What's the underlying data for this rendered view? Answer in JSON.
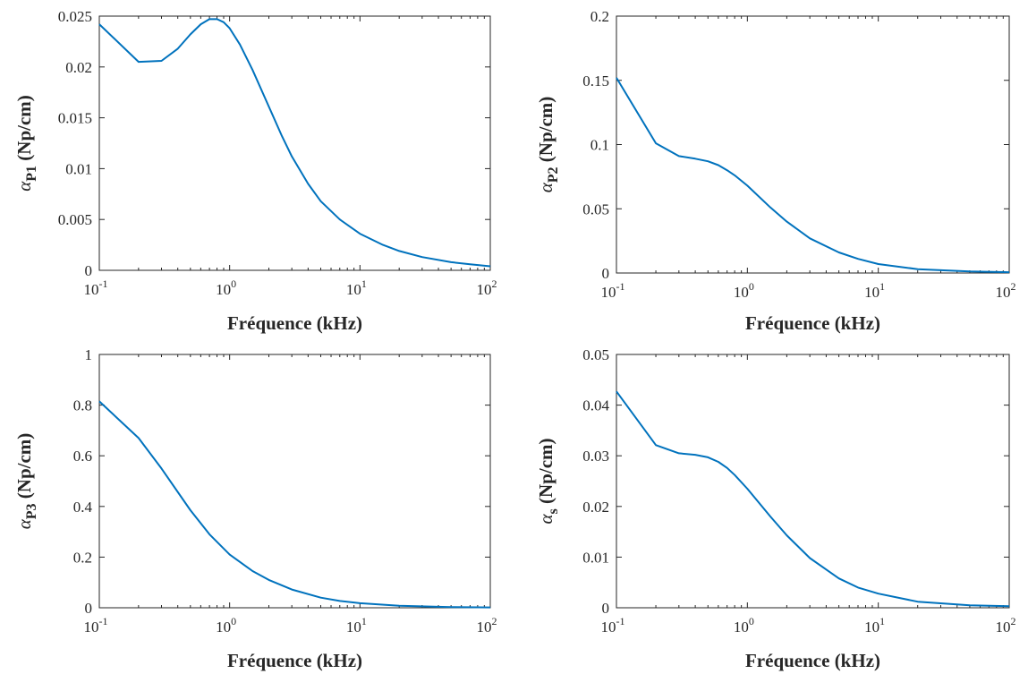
{
  "line_color": "#0072BD",
  "chart_data": [
    {
      "type": "line",
      "xlabel": "Fréquence (kHz)",
      "ylabel": {
        "symbol": "α",
        "subscript": "P1",
        "unit": "(Np/cm)"
      },
      "xscale": "log",
      "xlim": [
        0.1,
        100
      ],
      "ylim": [
        0,
        0.025
      ],
      "x_ticks": [
        {
          "base": "10",
          "exp": "-1"
        },
        {
          "base": "10",
          "exp": "0"
        },
        {
          "base": "10",
          "exp": "1"
        },
        {
          "base": "10",
          "exp": "2"
        }
      ],
      "y_ticks": [
        "0",
        "0.005",
        "0.01",
        "0.015",
        "0.02",
        "0.025"
      ],
      "y_tick_values": [
        0,
        0.005,
        0.01,
        0.015,
        0.02,
        0.025
      ],
      "x": [
        0.1,
        0.2,
        0.3,
        0.4,
        0.5,
        0.6,
        0.7,
        0.8,
        0.9,
        1.0,
        1.2,
        1.5,
        2.0,
        2.5,
        3.0,
        4.0,
        5.0,
        7.0,
        10,
        15,
        20,
        30,
        50,
        70,
        100
      ],
      "y": [
        0.0242,
        0.0205,
        0.0206,
        0.0218,
        0.0232,
        0.0242,
        0.0247,
        0.0247,
        0.0244,
        0.0238,
        0.0222,
        0.0197,
        0.0161,
        0.0133,
        0.0112,
        0.0085,
        0.0068,
        0.005,
        0.0036,
        0.0025,
        0.0019,
        0.0013,
        0.0008,
        0.0006,
        0.0004
      ]
    },
    {
      "type": "line",
      "xlabel": "Fréquence (kHz)",
      "ylabel": {
        "symbol": "α",
        "subscript": "P2",
        "unit": "(Np/cm)"
      },
      "xscale": "log",
      "xlim": [
        0.1,
        100
      ],
      "ylim": [
        0,
        0.2
      ],
      "x_ticks": [
        {
          "base": "10",
          "exp": "-1"
        },
        {
          "base": "10",
          "exp": "0"
        },
        {
          "base": "10",
          "exp": "1"
        },
        {
          "base": "10",
          "exp": "2"
        }
      ],
      "y_ticks": [
        "0",
        "0.05",
        "0.1",
        "0.15",
        "0.2"
      ],
      "y_tick_values": [
        0,
        0.05,
        0.1,
        0.15,
        0.2
      ],
      "x": [
        0.1,
        0.2,
        0.3,
        0.4,
        0.5,
        0.6,
        0.7,
        0.8,
        1.0,
        1.5,
        2.0,
        3.0,
        5.0,
        7.0,
        10,
        20,
        50,
        100
      ],
      "y": [
        0.152,
        0.101,
        0.091,
        0.089,
        0.087,
        0.084,
        0.08,
        0.076,
        0.068,
        0.051,
        0.04,
        0.027,
        0.016,
        0.011,
        0.007,
        0.003,
        0.0012,
        0.0006
      ]
    },
    {
      "type": "line",
      "xlabel": "Fréquence (kHz)",
      "ylabel": {
        "symbol": "α",
        "subscript": "P3",
        "unit": "(Np/cm)"
      },
      "xscale": "log",
      "xlim": [
        0.1,
        100
      ],
      "ylim": [
        0,
        1
      ],
      "x_ticks": [
        {
          "base": "10",
          "exp": "-1"
        },
        {
          "base": "10",
          "exp": "0"
        },
        {
          "base": "10",
          "exp": "1"
        },
        {
          "base": "10",
          "exp": "2"
        }
      ],
      "y_ticks": [
        "0",
        "0.2",
        "0.4",
        "0.6",
        "0.8",
        "1"
      ],
      "y_tick_values": [
        0,
        0.2,
        0.4,
        0.6,
        0.8,
        1
      ],
      "x": [
        0.1,
        0.2,
        0.3,
        0.5,
        0.7,
        1.0,
        1.5,
        2.0,
        3.0,
        5.0,
        7.0,
        10,
        20,
        50,
        100
      ],
      "y": [
        0.815,
        0.67,
        0.55,
        0.385,
        0.29,
        0.21,
        0.145,
        0.11,
        0.072,
        0.04,
        0.027,
        0.018,
        0.008,
        0.003,
        0.0015
      ]
    },
    {
      "type": "line",
      "xlabel": "Fréquence (kHz)",
      "ylabel": {
        "symbol": "α",
        "subscript": "s",
        "unit": "(Np/cm)"
      },
      "xscale": "log",
      "xlim": [
        0.1,
        100
      ],
      "ylim": [
        0,
        0.05
      ],
      "x_ticks": [
        {
          "base": "10",
          "exp": "-1"
        },
        {
          "base": "10",
          "exp": "0"
        },
        {
          "base": "10",
          "exp": "1"
        },
        {
          "base": "10",
          "exp": "2"
        }
      ],
      "y_ticks": [
        "0",
        "0.01",
        "0.02",
        "0.03",
        "0.04",
        "0.05"
      ],
      "y_tick_values": [
        0,
        0.01,
        0.02,
        0.03,
        0.04,
        0.05
      ],
      "x": [
        0.1,
        0.2,
        0.3,
        0.4,
        0.5,
        0.6,
        0.7,
        0.8,
        1.0,
        1.5,
        2.0,
        3.0,
        5.0,
        7.0,
        10,
        20,
        50,
        100
      ],
      "y": [
        0.0427,
        0.0321,
        0.0305,
        0.0302,
        0.0297,
        0.0288,
        0.0276,
        0.0262,
        0.0235,
        0.018,
        0.0143,
        0.0098,
        0.0058,
        0.004,
        0.0028,
        0.0012,
        0.0005,
        0.0003
      ]
    }
  ]
}
